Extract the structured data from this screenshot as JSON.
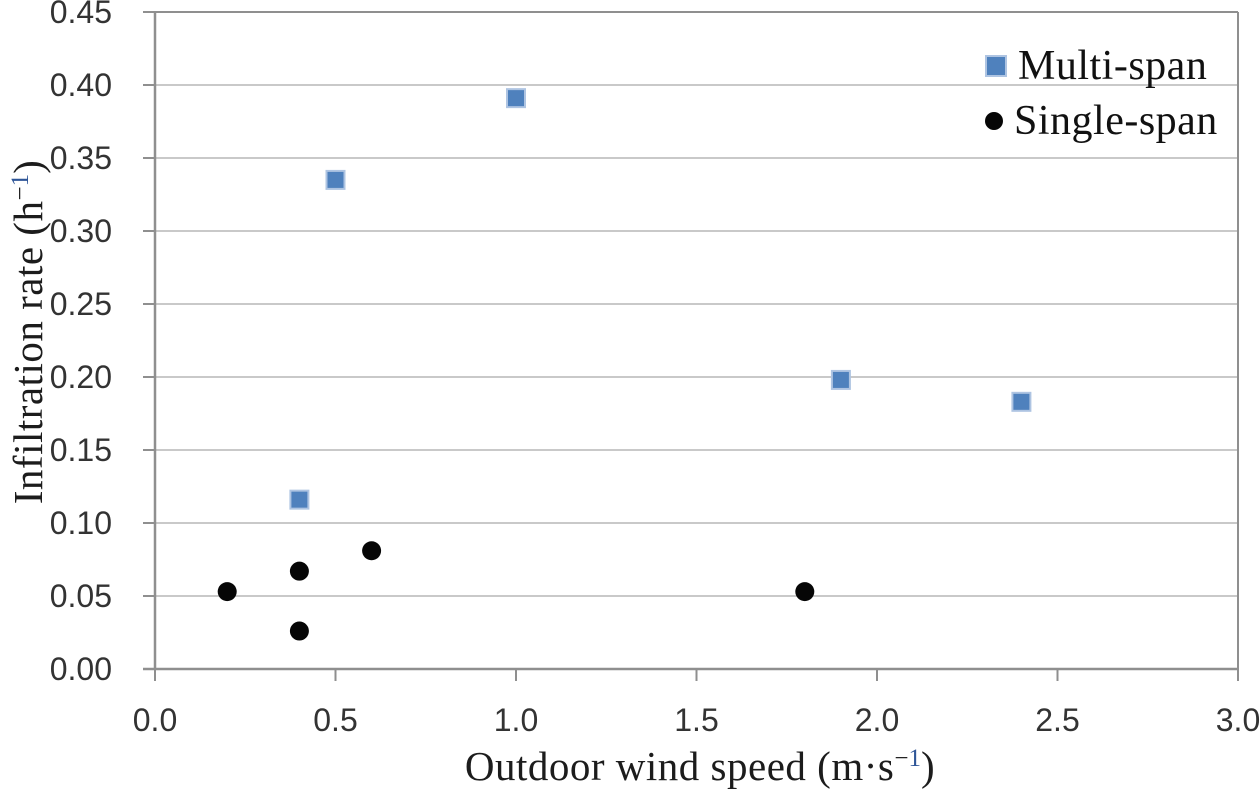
{
  "chart_data": {
    "type": "scatter",
    "title": "",
    "x_axis": {
      "title_prefix": "Outdoor wind speed (m·s",
      "title_sup_minus": "−",
      "title_sup_digit": "1",
      "title_suffix": ")",
      "ticks": [
        "0.0",
        "0.5",
        "1.0",
        "1.5",
        "2.0",
        "2.5",
        "3.0"
      ],
      "range": [
        0.0,
        3.0
      ]
    },
    "y_axis": {
      "title_prefix": "Infiltration rate (h",
      "title_sup_minus": "−",
      "title_sup_digit": "1",
      "title_suffix": ")",
      "ticks": [
        "0.00",
        "0.05",
        "0.10",
        "0.15",
        "0.20",
        "0.25",
        "0.30",
        "0.35",
        "0.40",
        "0.45"
      ],
      "range": [
        0.0,
        0.45
      ]
    },
    "series": [
      {
        "name": "Multi-span",
        "marker": "square",
        "color": "#4f81bd",
        "border": "#aec4e2",
        "points": [
          [
            0.4,
            0.116
          ],
          [
            0.5,
            0.335
          ],
          [
            1.0,
            0.391
          ],
          [
            1.9,
            0.198
          ],
          [
            2.4,
            0.183
          ]
        ]
      },
      {
        "name": "Single-span",
        "marker": "circle",
        "color": "#060606",
        "border": "#060606",
        "points": [
          [
            0.2,
            0.053
          ],
          [
            0.4,
            0.026
          ],
          [
            0.4,
            0.067
          ],
          [
            0.6,
            0.081
          ],
          [
            1.8,
            0.053
          ]
        ]
      }
    ],
    "legend_position": "top-right-inside",
    "grid": "horizontal-only",
    "colors": {
      "gridline": "#c9c9c9",
      "axis": "#8f8f8f",
      "tick_text": "#333333",
      "title_text": "#1c1c1c",
      "sup_digit_blue": "#2e5597"
    }
  }
}
